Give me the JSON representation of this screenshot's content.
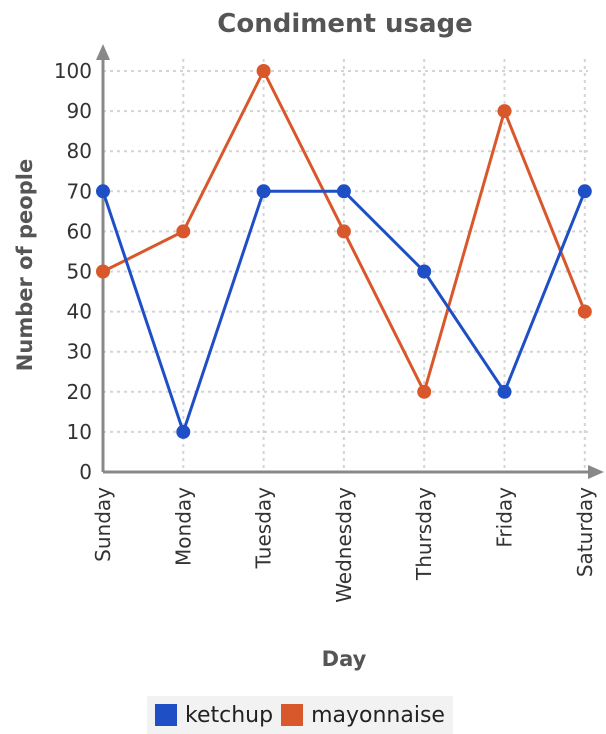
{
  "chart_data": {
    "type": "line",
    "title": "Condiment usage",
    "xlabel": "Day",
    "ylabel": "Number of people",
    "categories": [
      "Sunday",
      "Monday",
      "Tuesday",
      "Wednesday",
      "Thursday",
      "Friday",
      "Saturday"
    ],
    "series": [
      {
        "name": "ketchup",
        "color": "#1f4fc4",
        "values": [
          70,
          10,
          70,
          70,
          50,
          20,
          70
        ]
      },
      {
        "name": "mayonnaise",
        "color": "#d9582b",
        "values": [
          50,
          60,
          100,
          60,
          20,
          90,
          40
        ]
      }
    ],
    "ylim": [
      0,
      100
    ],
    "yticks": [
      0,
      10,
      20,
      30,
      40,
      50,
      60,
      70,
      80,
      90,
      100
    ],
    "grid": true,
    "legend_position": "bottom"
  }
}
